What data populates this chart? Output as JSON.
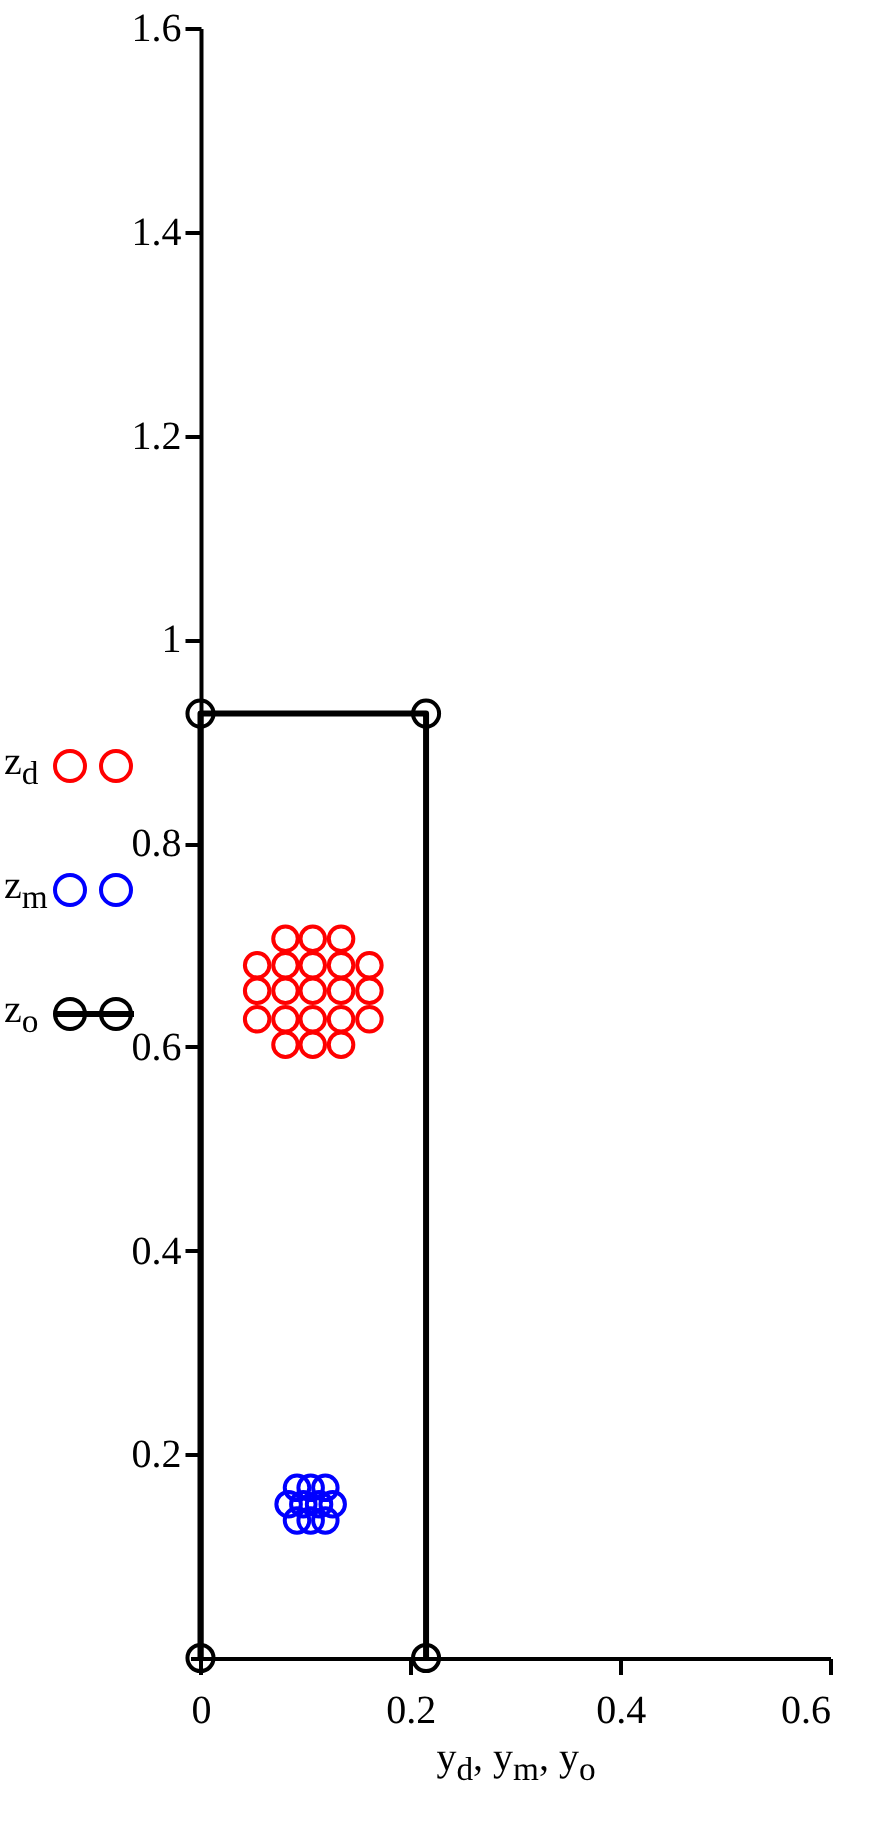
{
  "chart_data": {
    "type": "scatter",
    "xlabel": "y$_{d}$, y$_{m}$, y$_{o}$",
    "xlim": [
      -0.01,
      0.6
    ],
    "xticks": [
      0,
      0.2,
      0.4,
      0.6
    ],
    "ylim": [
      0,
      1.6
    ],
    "yticks": [
      0.2,
      0.4,
      0.6,
      0.8,
      1,
      1.2,
      1.4,
      1.6
    ],
    "grid": false,
    "legend": "left",
    "marker": "circle",
    "series": [
      {
        "name": "z$_{d}$",
        "color": "#ff0000",
        "type": "scatter",
        "x": [
          0.081,
          0.107,
          0.134,
          0.054,
          0.081,
          0.107,
          0.134,
          0.161,
          0.054,
          0.081,
          0.107,
          0.134,
          0.161,
          0.054,
          0.081,
          0.107,
          0.134,
          0.161,
          0.081,
          0.107,
          0.134
        ],
        "values": [
          0.706,
          0.706,
          0.706,
          0.68,
          0.68,
          0.68,
          0.68,
          0.68,
          0.655,
          0.655,
          0.655,
          0.655,
          0.655,
          0.627,
          0.627,
          0.627,
          0.627,
          0.627,
          0.602,
          0.602,
          0.602
        ]
      },
      {
        "name": "z$_{m}$",
        "color": "#0000ff",
        "type": "scatter",
        "x": [
          0.092,
          0.105,
          0.119,
          0.084,
          0.098,
          0.113,
          0.126,
          0.092,
          0.105,
          0.119
        ],
        "values": [
          0.167,
          0.167,
          0.167,
          0.151,
          0.151,
          0.151,
          0.151,
          0.135,
          0.135,
          0.135
        ]
      },
      {
        "name": "z$_{o}$",
        "color": "#000000",
        "type": "line",
        "x": [
          0,
          0,
          0.215,
          0.215
        ],
        "values": [
          0,
          0.927,
          0.927,
          0
        ]
      }
    ]
  }
}
